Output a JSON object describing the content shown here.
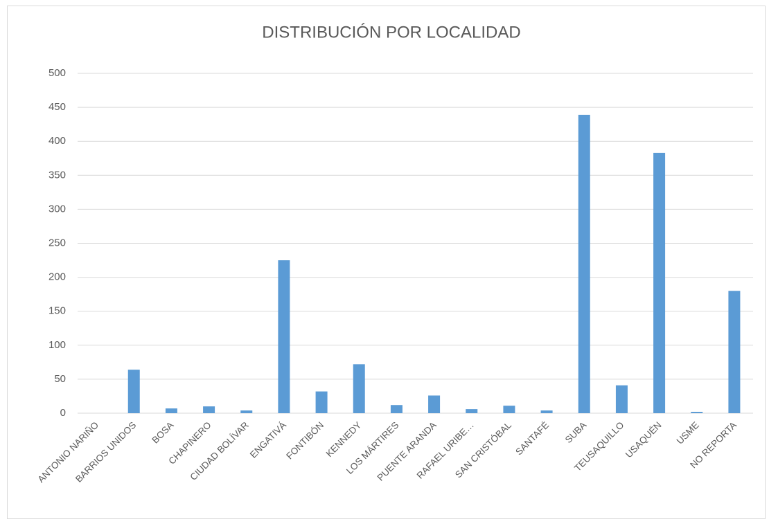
{
  "chart_data": {
    "type": "bar",
    "title": "DISTRIBUCIÓN POR LOCALIDAD",
    "categories": [
      "ANTONIO NARIÑO",
      "BARRIOS UNIDOS",
      "BOSA",
      "CHAPINERO",
      "CIUDAD BOLÍVAR",
      "ENGATIVÁ",
      "FONTIBÓN",
      "KENNEDY",
      "LOS MÁRTIRES",
      "PUENTE ARANDA",
      "RAFAEL URIBE…",
      "SAN CRISTÓBAL",
      "SANTAFÉ",
      "SUBA",
      "TEUSAQUILLO",
      "USAQUÉN",
      "USME",
      "NO REPORTA"
    ],
    "values": [
      0,
      64,
      7,
      10,
      4,
      225,
      32,
      72,
      12,
      26,
      6,
      11,
      4,
      439,
      41,
      383,
      2,
      180
    ],
    "color": "#5b9bd5",
    "ylim": [
      0,
      500
    ],
    "yticks": [
      0,
      50,
      100,
      150,
      200,
      250,
      300,
      350,
      400,
      450,
      500
    ],
    "grid": true
  }
}
